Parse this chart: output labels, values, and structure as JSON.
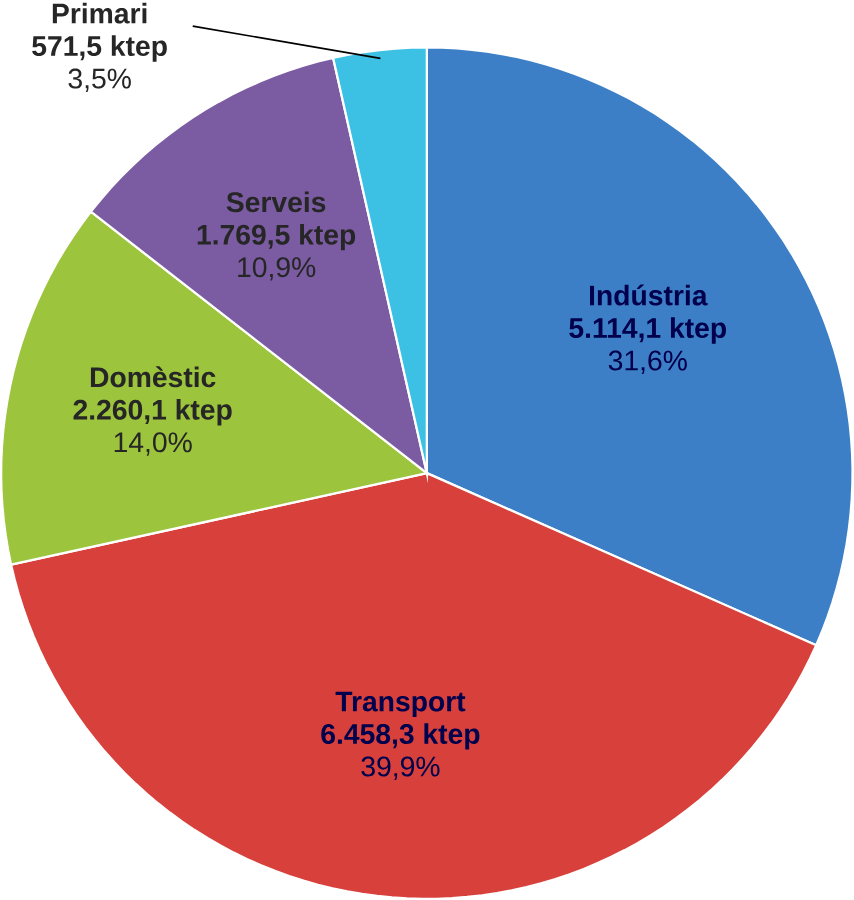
{
  "chart_data": {
    "type": "pie",
    "categories": [
      "Indústria",
      "Transport",
      "Domèstic",
      "Serveis",
      "Primari"
    ],
    "values": [
      5114.1,
      6458.3,
      2260.1,
      1769.5,
      571.5
    ],
    "value_labels": [
      "5.114,1 ktep",
      "6.458,3 ktep",
      "2.260,1 ktep",
      "1.769,5 ktep",
      "571,5 ktep"
    ],
    "annotations": [
      "31,6%",
      "39,9%",
      "14,0%",
      "10,9%",
      "3,5%"
    ],
    "colors": [
      "#3d7fc6",
      "#d8413b",
      "#9cc43c",
      "#7b5ca3",
      "#3cc0e3"
    ]
  }
}
